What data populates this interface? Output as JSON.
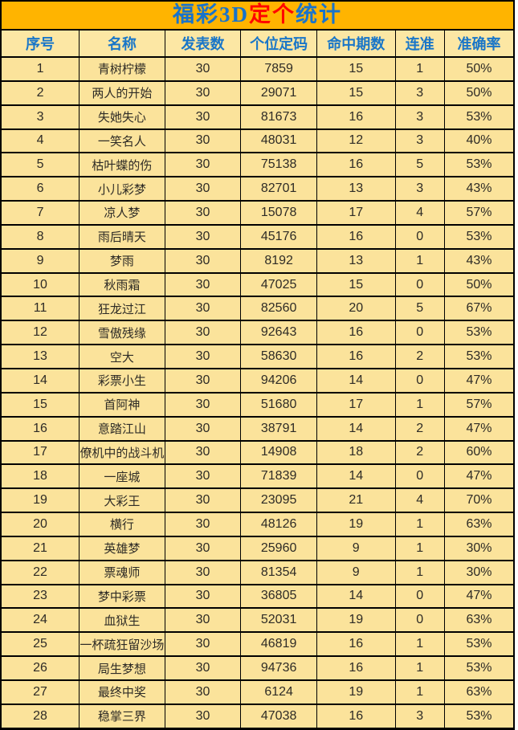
{
  "title": {
    "part1": "福彩3D",
    "part2": "定个",
    "part3": "统计",
    "full": "福彩3D定个统计"
  },
  "colors": {
    "title_bg": "#FFB400",
    "title_blue": "#1873CC",
    "title_red": "#FF0600",
    "header_bg": "#FCE7A4",
    "header_text": "#1976C8",
    "row_bg": "#FBE39B",
    "border": "#000000",
    "text": "#2E2B26"
  },
  "chart_data": {
    "type": "table",
    "title": "福彩3D定个统计",
    "columns": [
      "序号",
      "名称",
      "发表数",
      "个位定码",
      "命中期数",
      "连准",
      "准确率"
    ],
    "rows": [
      [
        1,
        "青树柠檬",
        30,
        "7859",
        15,
        1,
        "50%"
      ],
      [
        2,
        "两人的开始",
        30,
        "29071",
        15,
        3,
        "50%"
      ],
      [
        3,
        "失她失心",
        30,
        "81673",
        16,
        3,
        "53%"
      ],
      [
        4,
        "一笑名人",
        30,
        "48031",
        12,
        3,
        "40%"
      ],
      [
        5,
        "枯叶蝶的伤",
        30,
        "75138",
        16,
        5,
        "53%"
      ],
      [
        6,
        "小儿彩梦",
        30,
        "82701",
        13,
        3,
        "43%"
      ],
      [
        7,
        "凉人梦",
        30,
        "15078",
        17,
        4,
        "57%"
      ],
      [
        8,
        "雨后晴天",
        30,
        "45176",
        16,
        0,
        "53%"
      ],
      [
        9,
        "梦雨",
        30,
        "8192",
        13,
        1,
        "43%"
      ],
      [
        10,
        "秋雨霜",
        30,
        "47025",
        15,
        0,
        "50%"
      ],
      [
        11,
        "狂龙过江",
        30,
        "82560",
        20,
        5,
        "67%"
      ],
      [
        12,
        "雪傲残缘",
        30,
        "92643",
        16,
        0,
        "53%"
      ],
      [
        13,
        "空大",
        30,
        "58630",
        16,
        2,
        "53%"
      ],
      [
        14,
        "彩票小生",
        30,
        "94206",
        14,
        0,
        "47%"
      ],
      [
        15,
        "首阿神",
        30,
        "51680",
        17,
        1,
        "57%"
      ],
      [
        16,
        "意踏江山",
        30,
        "38791",
        14,
        2,
        "47%"
      ],
      [
        17,
        "僚机中的战斗机",
        30,
        "14908",
        18,
        2,
        "60%"
      ],
      [
        18,
        "一座城",
        30,
        "71839",
        14,
        0,
        "47%"
      ],
      [
        19,
        "大彩王",
        30,
        "23095",
        21,
        4,
        "70%"
      ],
      [
        20,
        "横行",
        30,
        "48126",
        19,
        1,
        "63%"
      ],
      [
        21,
        "英雄梦",
        30,
        "25960",
        9,
        1,
        "30%"
      ],
      [
        22,
        "票魂师",
        30,
        "81354",
        9,
        1,
        "30%"
      ],
      [
        23,
        "梦中彩票",
        30,
        "36805",
        14,
        0,
        "47%"
      ],
      [
        24,
        "血狱生",
        30,
        "52031",
        19,
        0,
        "63%"
      ],
      [
        25,
        "一杯疏狂留沙场",
        30,
        "46819",
        16,
        1,
        "53%"
      ],
      [
        26,
        "局生梦想",
        30,
        "94736",
        16,
        1,
        "53%"
      ],
      [
        27,
        "最终中奖",
        30,
        "6124",
        19,
        1,
        "63%"
      ],
      [
        28,
        "稳掌三界",
        30,
        "47038",
        16,
        3,
        "53%"
      ]
    ]
  }
}
